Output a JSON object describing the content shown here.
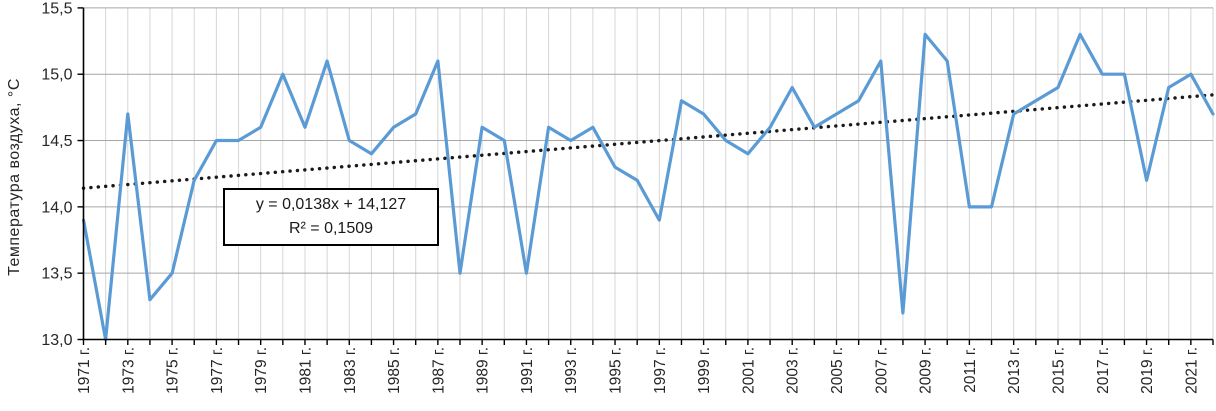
{
  "chart_data": {
    "type": "line",
    "title": "",
    "xlabel": "",
    "ylabel": "Температура воздуха, °С",
    "years": [
      1971,
      1972,
      1973,
      1974,
      1975,
      1976,
      1977,
      1978,
      1979,
      1980,
      1981,
      1982,
      1983,
      1984,
      1985,
      1986,
      1987,
      1988,
      1989,
      1990,
      1991,
      1992,
      1993,
      1994,
      1995,
      1996,
      1997,
      1998,
      1999,
      2000,
      2001,
      2002,
      2003,
      2004,
      2005,
      2006,
      2007,
      2008,
      2009,
      2010,
      2011,
      2012,
      2013,
      2014,
      2015,
      2016,
      2017,
      2018,
      2019,
      2020,
      2021,
      2022
    ],
    "series": [
      {
        "name": "air-temperature",
        "values": [
          13.9,
          13.0,
          14.7,
          13.3,
          13.5,
          14.2,
          14.5,
          14.5,
          14.6,
          15.0,
          14.6,
          15.1,
          14.5,
          14.4,
          14.6,
          14.7,
          15.1,
          13.5,
          14.6,
          14.5,
          13.5,
          14.6,
          14.5,
          14.6,
          14.3,
          14.2,
          13.9,
          14.8,
          14.7,
          14.5,
          14.4,
          14.6,
          14.9,
          14.6,
          14.7,
          14.8,
          15.1,
          13.2,
          15.3,
          15.1,
          14.0,
          14.0,
          14.7,
          14.8,
          14.9,
          15.3,
          15.0,
          15.0,
          14.2,
          14.9,
          15.0,
          14.7
        ]
      },
      {
        "name": "linear-trend",
        "slope": 0.0138,
        "intercept": 14.127
      }
    ],
    "trend_equation_line1": "y = 0,0138x + 14,127",
    "trend_equation_line2": "R² = 0,1509",
    "y_tick_labels": [
      "15,5",
      "15,0",
      "14,5",
      "14,0",
      "13,5",
      "13,0"
    ],
    "y_tick_values": [
      15.5,
      15.0,
      14.5,
      14.0,
      13.5,
      13.0
    ],
    "x_tick_labels": [
      "1971 г.",
      "1973 г.",
      "1975 г.",
      "1977 г.",
      "1979 г.",
      "1981 г.",
      "1983 г.",
      "1985 г.",
      "1987 г.",
      "1989 г.",
      "1991 г.",
      "1993 г.",
      "1995 г.",
      "1997 г.",
      "1999 г.",
      "2001 г.",
      "2003 г.",
      "2005 г.",
      "2007 г.",
      "2009 г.",
      "2011 г.",
      "2013 г.",
      "2015 г.",
      "2017 г.",
      "2019 г.",
      "2021 г."
    ],
    "x_label_year_step": 2,
    "ylim": [
      13.0,
      15.5
    ],
    "y_grid_step": 0.5,
    "grid": true,
    "legend": "none",
    "colors": {
      "series_line": "#5B9BD5",
      "trend_line": "#1a1a1a",
      "h_grid": "#A6A6A6",
      "v_grid": "#D6D6D6",
      "axis": "#000000",
      "tick_text": "#262626"
    }
  }
}
